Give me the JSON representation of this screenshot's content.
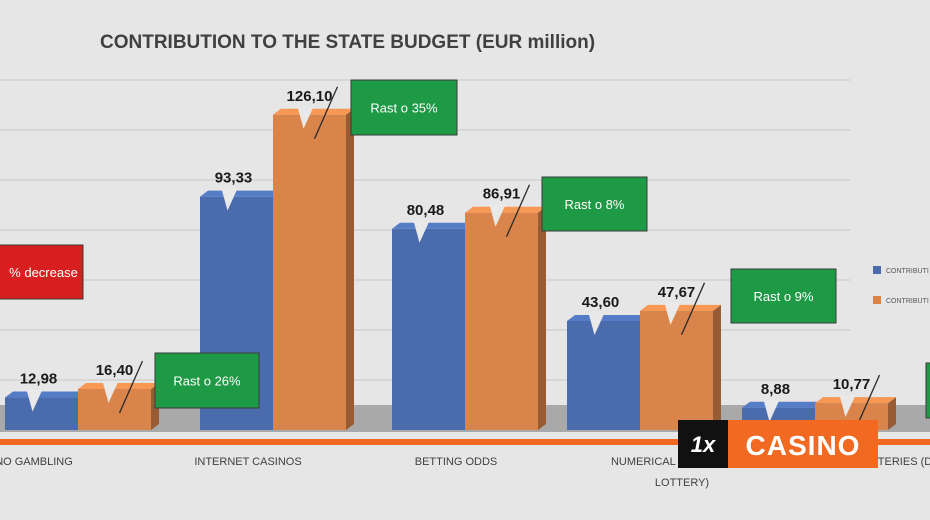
{
  "chart_data": {
    "type": "bar",
    "title": "CONTRIBUTION TO THE STATE BUDGET (EUR million)",
    "categories": [
      {
        "label_lines": [
          "NO GAMBLING"
        ]
      },
      {
        "label_lines": [
          "INTERNET CASINOS"
        ]
      },
      {
        "label_lines": [
          "BETTING ODDS"
        ]
      },
      {
        "label_lines": [
          "NUMERICAL LO",
          "LOTTERY)"
        ]
      },
      {
        "label_lines": [
          "TERIES (D"
        ]
      }
    ],
    "series": [
      {
        "name": "CONTRIBUTI",
        "color": "#4a6cad",
        "values": [
          12.98,
          93.33,
          80.48,
          43.6,
          8.88
        ],
        "labels": [
          "12,98",
          "93,33",
          "80,48",
          "43,60",
          "8,88"
        ]
      },
      {
        "name": "CONTRIBUTI",
        "color": "#d8844a",
        "values": [
          16.4,
          126.1,
          86.91,
          47.67,
          10.77
        ],
        "labels": [
          "16,40",
          "126,10",
          "86,91",
          "47,67",
          "10,77"
        ]
      }
    ],
    "ylim": [
      0,
      140
    ],
    "grid": true,
    "legend": "right",
    "annotations": [
      {
        "text": "% decrease",
        "color": "#d81f1f",
        "category": 0
      },
      {
        "text": "Rast o 26%",
        "color": "#1e9945",
        "category": 0
      },
      {
        "text": "Rast o 35%",
        "color": "#1e9945",
        "category": 1
      },
      {
        "text": "Rast o 8%",
        "color": "#1e9945",
        "category": 2
      },
      {
        "text": "Rast o 9%",
        "color": "#1e9945",
        "category": 3
      }
    ]
  },
  "logo": {
    "mark": "1x",
    "text": "CASINO",
    "color": "#f26a21"
  },
  "colors": {
    "accent_line": "#f26a21",
    "floor": "#a9a9a9"
  }
}
